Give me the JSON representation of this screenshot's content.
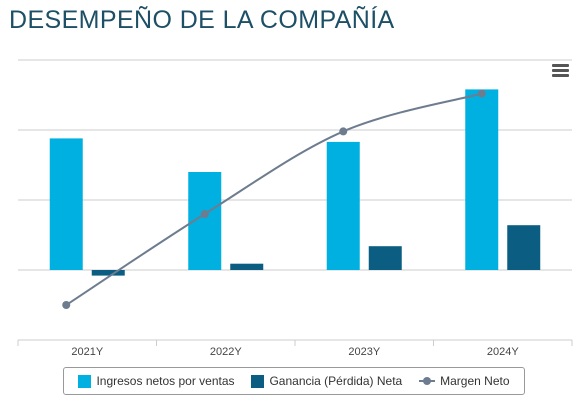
{
  "page": {
    "title": "DESEMPEÑO DE LA COMPAÑÍA"
  },
  "chart_data": {
    "type": "bar",
    "categories": [
      "2021Y",
      "2022Y",
      "2023Y",
      "2024Y"
    ],
    "series": [
      {
        "name": "Ingresos netos por ventas",
        "type": "bar",
        "color": "#00b0e0",
        "values": [
          1.88,
          1.4,
          1.83,
          2.58
        ]
      },
      {
        "name": "Ganancia (Pérdida) Neta",
        "type": "bar",
        "color": "#0b5e82",
        "values": [
          -0.08,
          0.09,
          0.34,
          0.64
        ]
      },
      {
        "name": "Margen Neto",
        "type": "line",
        "color": "#6e7c8f",
        "values": [
          -0.5,
          0.8,
          1.98,
          2.52
        ]
      }
    ],
    "ylim": [
      -1,
      3
    ],
    "grid": true,
    "ytick_labels_visible": false,
    "legend_position": "bottom"
  }
}
